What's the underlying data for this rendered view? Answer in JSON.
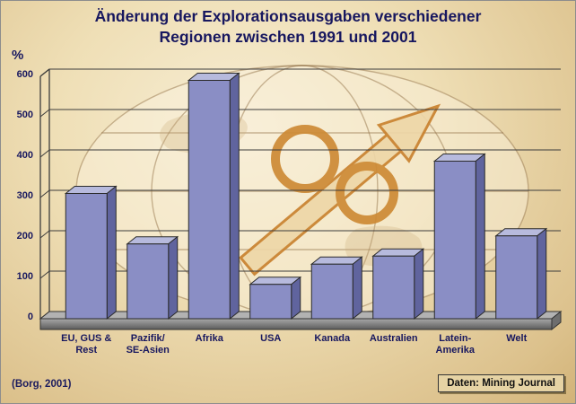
{
  "title": {
    "line1": "Änderung der Explorationsausgaben verschiedener",
    "line2": "Regionen zwischen 1991 und 2001"
  },
  "y_axis": {
    "unit": "%",
    "ticks": [
      0,
      100,
      200,
      300,
      400,
      500,
      600
    ]
  },
  "chart_data": {
    "type": "bar",
    "title": "Änderung der Explorationsausgaben verschiedener Regionen zwischen 1991 und 2001",
    "categories": [
      "EU, GUS &\nRest",
      "Pazifik/\nSE-Asien",
      "Afrika",
      "USA",
      "Kanada",
      "Australien",
      "Latein-\nAmerika",
      "Welt"
    ],
    "values": [
      310,
      185,
      590,
      85,
      135,
      155,
      390,
      205
    ],
    "xlabel": "",
    "ylabel": "%",
    "ylim": [
      0,
      600
    ],
    "grid": true,
    "legend": "none",
    "bar_color_front": "#8a8ec5",
    "bar_color_top": "#b7badd",
    "bar_color_side": "#60649e",
    "outline_color": "#2b2b2b",
    "floor_color": "#7a7a7a",
    "grid_color": "#3c3c3c"
  },
  "decor": {
    "percent_symbol": "%",
    "arrow_direction": "up-right",
    "accent_orange": "#cd8a35",
    "accent_cream": "#eed7a8"
  },
  "footer": {
    "source": "(Borg, 2001)",
    "data_label": "Daten:",
    "data_value": "Mining Journal"
  }
}
